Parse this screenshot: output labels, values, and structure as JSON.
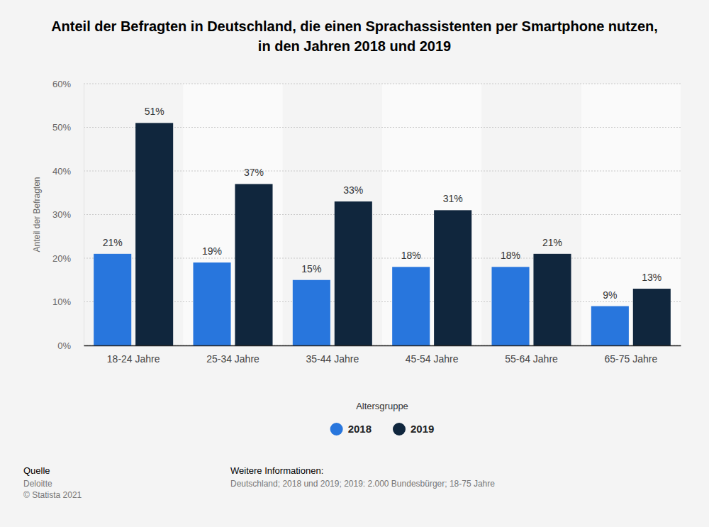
{
  "chart_data": {
    "type": "bar",
    "title": "Anteil der Befragten in Deutschland, die einen Sprachassistenten per Smartphone nutzen, in den Jahren 2018 und 2019",
    "x_label": "Altersgruppe",
    "y_label": "Anteil der Befragten",
    "categories": [
      "18-24 Jahre",
      "25-34 Jahre",
      "35-44 Jahre",
      "45-54 Jahre",
      "55-64 Jahre",
      "65-75 Jahre"
    ],
    "series": [
      {
        "name": "2018",
        "color": "#2876dd",
        "values": [
          21,
          19,
          15,
          18,
          18,
          9
        ],
        "value_labels": [
          "21%",
          "19%",
          "15%",
          "18%",
          "18%",
          "9%"
        ]
      },
      {
        "name": "2019",
        "color": "#10263d",
        "values": [
          51,
          37,
          33,
          31,
          21,
          13
        ],
        "value_labels": [
          "51%",
          "37%",
          "33%",
          "31%",
          "21%",
          "13%"
        ]
      }
    ],
    "ylim": [
      0,
      60
    ],
    "yticks": [
      {
        "value": 0,
        "label": "0%"
      },
      {
        "value": 10,
        "label": "10%"
      },
      {
        "value": 20,
        "label": "20%"
      },
      {
        "value": 30,
        "label": "30%"
      },
      {
        "value": 40,
        "label": "40%"
      },
      {
        "value": 50,
        "label": "50%"
      },
      {
        "value": 60,
        "label": "60%"
      }
    ],
    "grid": true,
    "legend": "bottom",
    "data_labels": true,
    "source_label": "Quelle",
    "source": "Deloitte",
    "copyright": "© Statista 2021",
    "note_label": "Weitere Informationen:",
    "note": "Deutschland; 2018 und 2019; 2019: 2.000 Bundesbürger; 18-75 Jahre"
  }
}
